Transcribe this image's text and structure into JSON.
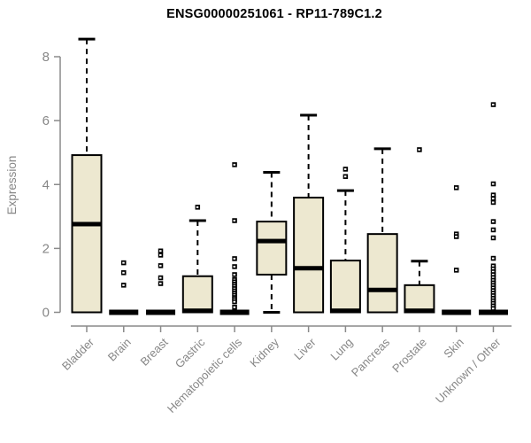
{
  "figure": {
    "background": "#ffffff"
  },
  "chart_data": {
    "type": "boxplot",
    "title": "ENSG00000251061 - RP11-789C1.2",
    "xlabel": "",
    "ylabel": "Expression",
    "ylim": [
      0,
      8.8
    ],
    "yticks": [
      0,
      2,
      4,
      6,
      8
    ],
    "grid": false,
    "legend": null,
    "colors": {
      "box_fill": "#EDE8D0",
      "box_border": "#000000",
      "median": "#000000",
      "whisker": "#000000",
      "outlier": "#000000",
      "axis": "#8a8a8a",
      "tick_text": "#878787",
      "title_text": "#000000"
    },
    "categories": [
      "Bladder",
      "Brain",
      "Breast",
      "Gastric",
      "Hematopoietic cells",
      "Kidney",
      "Liver",
      "Lung",
      "Pancreas",
      "Prostate",
      "Skin",
      "Unknown / Other"
    ],
    "series": [
      {
        "category": "Bladder",
        "whisker_low": 0,
        "q1": 0,
        "median": 2.76,
        "q3": 4.92,
        "whisker_high": 8.55,
        "outliers": []
      },
      {
        "category": "Brain",
        "whisker_low": 0,
        "q1": 0,
        "median": 0,
        "q3": 0,
        "whisker_high": 0,
        "outliers": [
          1.55,
          1.24,
          0.85
        ]
      },
      {
        "category": "Breast",
        "whisker_low": 0,
        "q1": 0,
        "median": 0,
        "q3": 0,
        "whisker_high": 0,
        "outliers": [
          1.92,
          1.79,
          1.46,
          1.08,
          0.9
        ]
      },
      {
        "category": "Gastric",
        "whisker_low": 0,
        "q1": 0,
        "median": 0.05,
        "q3": 1.13,
        "whisker_high": 2.87,
        "outliers": [
          3.29
        ]
      },
      {
        "category": "Hematopoietic cells",
        "whisker_low": 0,
        "q1": 0,
        "median": 0,
        "q3": 0,
        "whisker_high": 0,
        "outliers": [
          4.62,
          2.87,
          1.68,
          1.43,
          1.18,
          1.02,
          0.95,
          0.88,
          0.81,
          0.74,
          0.67,
          0.6,
          0.53,
          0.46,
          0.4,
          0.33,
          0.16
        ]
      },
      {
        "category": "Kidney",
        "whisker_low": 0,
        "q1": 1.18,
        "median": 2.23,
        "q3": 2.84,
        "whisker_high": 4.38,
        "outliers": []
      },
      {
        "category": "Liver",
        "whisker_low": 0,
        "q1": 0,
        "median": 1.38,
        "q3": 3.59,
        "whisker_high": 6.17,
        "outliers": []
      },
      {
        "category": "Lung",
        "whisker_low": 0,
        "q1": 0,
        "median": 0.05,
        "q3": 1.62,
        "whisker_high": 3.81,
        "outliers": [
          4.48,
          4.25
        ]
      },
      {
        "category": "Pancreas",
        "whisker_low": 0,
        "q1": 0,
        "median": 0.7,
        "q3": 2.45,
        "whisker_high": 5.12,
        "outliers": []
      },
      {
        "category": "Prostate",
        "whisker_low": 0,
        "q1": 0,
        "median": 0.05,
        "q3": 0.85,
        "whisker_high": 1.6,
        "outliers": [
          5.09
        ]
      },
      {
        "category": "Skin",
        "whisker_low": 0,
        "q1": 0,
        "median": 0,
        "q3": 0,
        "whisker_high": 0,
        "outliers": [
          3.9,
          2.45,
          2.37,
          1.32
        ]
      },
      {
        "category": "Unknown / Other",
        "whisker_low": 0,
        "q1": 0,
        "median": 0,
        "q3": 0,
        "whisker_high": 0,
        "outliers": [
          6.5,
          4.02,
          3.67,
          3.56,
          3.44,
          2.84,
          2.58,
          2.33,
          1.69,
          1.45,
          1.36,
          1.27,
          1.18,
          1.09,
          1.0,
          0.92,
          0.84,
          0.76,
          0.68,
          0.6,
          0.52,
          0.44,
          0.36,
          0.28,
          0.2,
          0.12
        ]
      }
    ]
  }
}
